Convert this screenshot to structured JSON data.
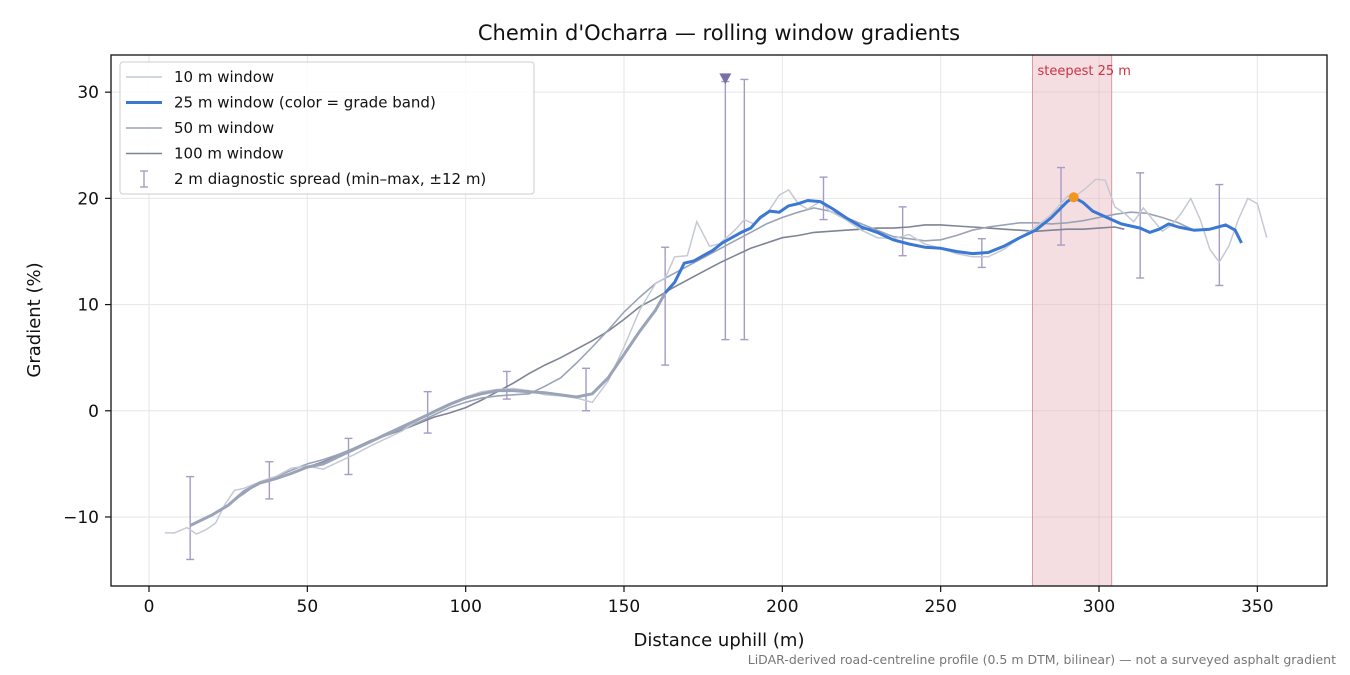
{
  "chart_data": {
    "type": "line",
    "title": "Chemin d'Ocharra — rolling window gradients",
    "xlabel": "Distance uphill (m)",
    "ylabel": "Gradient (%)",
    "xlim": [
      -12,
      372
    ],
    "ylim": [
      -16.5,
      33.5
    ],
    "xticks": [
      0,
      50,
      100,
      150,
      200,
      250,
      300,
      350
    ],
    "yticks": [
      -10,
      0,
      10,
      20,
      30
    ],
    "xtick_labels": [
      "0",
      "50",
      "100",
      "150",
      "200",
      "250",
      "300",
      "350"
    ],
    "ytick_labels": [
      "−10",
      "0",
      "10",
      "20",
      "30"
    ],
    "grid": true,
    "legend_position": "top-left",
    "footnote": "LiDAR-derived road-centreline profile (0.5 m DTM, bilinear) — not a surveyed asphalt gradient",
    "series": [
      {
        "name": "10 m window",
        "color": "#c4c9d4",
        "x": [
          5,
          8,
          12,
          15,
          18,
          21,
          24,
          27,
          30,
          35,
          40,
          45,
          50,
          55,
          60,
          65,
          70,
          75,
          80,
          85,
          90,
          95,
          100,
          105,
          110,
          115,
          120,
          125,
          130,
          135,
          140,
          145,
          150,
          155,
          160,
          163,
          166,
          170,
          173,
          177,
          180,
          182,
          185,
          188,
          191,
          195,
          199,
          202,
          205,
          208,
          212,
          215,
          220,
          225,
          230,
          235,
          240,
          245,
          250,
          255,
          260,
          265,
          270,
          275,
          280,
          285,
          290,
          293,
          296,
          299,
          302,
          305,
          308,
          311,
          314,
          317,
          320,
          323,
          326,
          329,
          332,
          335,
          338,
          341,
          344,
          347,
          350,
          353
        ],
        "y": [
          -11.5,
          -11.5,
          -11.0,
          -11.6,
          -11.2,
          -10.6,
          -8.8,
          -7.5,
          -7.3,
          -6.7,
          -6.2,
          -5.4,
          -5.2,
          -5.5,
          -4.8,
          -4.1,
          -3.3,
          -2.6,
          -1.9,
          -0.9,
          0.0,
          0.7,
          1.3,
          1.8,
          2.0,
          2.1,
          1.9,
          1.5,
          1.4,
          1.2,
          0.8,
          2.8,
          6.0,
          9.5,
          12.0,
          12.5,
          14.5,
          14.6,
          17.8,
          15.5,
          15.7,
          16.2,
          17.0,
          18.0,
          17.6,
          18.5,
          20.3,
          20.8,
          19.5,
          19.0,
          19.7,
          18.8,
          18.0,
          17.0,
          16.3,
          16.2,
          16.6,
          15.7,
          15.3,
          14.8,
          14.5,
          14.5,
          15.2,
          16.3,
          17.3,
          18.5,
          20.2,
          20.3,
          21.0,
          21.8,
          21.7,
          19.2,
          18.6,
          17.8,
          19.1,
          18.0,
          16.9,
          17.5,
          18.6,
          20.0,
          18.0,
          15.2,
          14.0,
          15.5,
          18.0,
          20.0,
          19.5,
          16.3
        ]
      },
      {
        "name": "25 m window (color = grade band)",
        "color": "#3a78d4",
        "gray_color": "#9aa3b8",
        "blue_from": 163,
        "x": [
          13,
          20,
          25,
          30,
          35,
          40,
          45,
          50,
          55,
          60,
          65,
          70,
          75,
          80,
          85,
          90,
          95,
          100,
          105,
          110,
          115,
          120,
          125,
          130,
          135,
          140,
          145,
          150,
          155,
          160,
          163,
          166,
          169,
          172,
          175,
          178,
          181,
          184,
          187,
          190,
          193,
          196,
          199,
          202,
          205,
          208,
          212,
          216,
          220,
          225,
          230,
          235,
          240,
          245,
          250,
          255,
          260,
          265,
          270,
          275,
          280,
          285,
          290,
          292,
          295,
          298,
          301,
          304,
          307,
          310,
          313,
          316,
          319,
          322,
          325,
          330,
          335,
          340,
          343,
          345
        ],
        "y": [
          -10.8,
          -9.8,
          -8.9,
          -7.6,
          -6.8,
          -6.4,
          -5.9,
          -5.3,
          -5.0,
          -4.3,
          -3.6,
          -2.9,
          -2.2,
          -1.5,
          -0.8,
          -0.1,
          0.6,
          1.2,
          1.6,
          1.9,
          1.9,
          1.8,
          1.7,
          1.5,
          1.3,
          1.6,
          3.1,
          5.3,
          7.5,
          9.5,
          11.1,
          12.1,
          13.9,
          14.1,
          14.6,
          15.1,
          15.8,
          16.3,
          16.8,
          17.2,
          18.2,
          18.8,
          18.7,
          19.3,
          19.5,
          19.8,
          19.7,
          19.0,
          18.2,
          17.3,
          16.8,
          16.1,
          15.7,
          15.4,
          15.3,
          15.0,
          14.8,
          14.9,
          15.5,
          16.3,
          17.0,
          18.2,
          19.7,
          20.1,
          19.6,
          18.8,
          18.4,
          18.0,
          17.6,
          17.4,
          17.2,
          16.8,
          17.1,
          17.6,
          17.3,
          17.0,
          17.1,
          17.5,
          17.0,
          15.8
        ]
      },
      {
        "name": "50 m window",
        "color": "#9aa3b5",
        "x": [
          25,
          30,
          35,
          40,
          45,
          50,
          55,
          60,
          65,
          70,
          75,
          80,
          85,
          90,
          95,
          100,
          105,
          110,
          115,
          120,
          125,
          130,
          135,
          140,
          145,
          150,
          155,
          160,
          165,
          170,
          175,
          180,
          185,
          190,
          195,
          200,
          205,
          210,
          215,
          220,
          225,
          230,
          235,
          240,
          245,
          250,
          255,
          260,
          265,
          270,
          275,
          280,
          285,
          290,
          295,
          300,
          305,
          310,
          315,
          320,
          325,
          330
        ],
        "y": [
          -8.8,
          -7.8,
          -6.7,
          -6.2,
          -5.6,
          -5.0,
          -4.6,
          -4.1,
          -3.5,
          -2.9,
          -2.3,
          -1.7,
          -1.1,
          -0.4,
          0.3,
          0.8,
          1.2,
          1.4,
          1.5,
          1.6,
          2.3,
          3.1,
          4.5,
          6.0,
          7.6,
          9.3,
          10.7,
          12.0,
          12.8,
          13.6,
          14.4,
          15.2,
          16.0,
          16.8,
          17.6,
          18.2,
          18.7,
          19.1,
          18.8,
          18.2,
          17.6,
          17.0,
          16.4,
          16.2,
          16.0,
          16.1,
          16.5,
          17.0,
          17.3,
          17.5,
          17.7,
          17.7,
          17.6,
          17.7,
          17.9,
          18.2,
          18.5,
          18.7,
          18.6,
          18.2,
          17.7,
          17.0
        ]
      },
      {
        "name": "100 m window",
        "color": "#7d8496",
        "x": [
          50,
          55,
          60,
          65,
          70,
          75,
          80,
          85,
          90,
          95,
          100,
          105,
          110,
          115,
          120,
          125,
          130,
          135,
          140,
          145,
          150,
          155,
          160,
          165,
          170,
          175,
          180,
          185,
          190,
          195,
          200,
          205,
          210,
          215,
          220,
          225,
          230,
          235,
          240,
          245,
          250,
          255,
          260,
          265,
          270,
          275,
          280,
          285,
          290,
          295,
          300,
          305,
          308
        ],
        "y": [
          -5.3,
          -4.8,
          -4.2,
          -3.5,
          -2.8,
          -2.3,
          -1.8,
          -1.2,
          -0.6,
          -0.2,
          0.3,
          1.0,
          1.8,
          2.6,
          3.5,
          4.3,
          5.0,
          5.8,
          6.6,
          7.5,
          8.6,
          9.8,
          10.6,
          11.5,
          12.3,
          13.1,
          13.9,
          14.6,
          15.3,
          15.8,
          16.3,
          16.5,
          16.8,
          16.9,
          17.0,
          17.1,
          17.2,
          17.2,
          17.3,
          17.5,
          17.5,
          17.4,
          17.3,
          17.2,
          17.1,
          17.0,
          16.9,
          17.0,
          17.1,
          17.1,
          17.2,
          17.3,
          17.1
        ]
      }
    ],
    "error_bars": {
      "name": "2 m diagnostic spread (min–max, ±12 m)",
      "color": "#a69bc4",
      "points": [
        {
          "x": 13,
          "min": -14.0,
          "max": -6.2
        },
        {
          "x": 38,
          "min": -8.3,
          "max": -4.8
        },
        {
          "x": 63,
          "min": -6.0,
          "max": -2.6
        },
        {
          "x": 88,
          "min": -2.1,
          "max": 1.8
        },
        {
          "x": 113,
          "min": 1.1,
          "max": 3.7
        },
        {
          "x": 138,
          "min": 0.0,
          "max": 4.0
        },
        {
          "x": 163,
          "min": 4.3,
          "max": 15.4
        },
        {
          "x": 182,
          "min": 6.7,
          "max": 31.0
        },
        {
          "x": 188,
          "min": 6.7,
          "max": 31.2
        },
        {
          "x": 213,
          "min": 18.0,
          "max": 22.0
        },
        {
          "x": 238,
          "min": 14.6,
          "max": 19.2
        },
        {
          "x": 263,
          "min": 13.5,
          "max": 16.2
        },
        {
          "x": 288,
          "min": 15.6,
          "max": 22.9
        },
        {
          "x": 313,
          "min": 12.5,
          "max": 22.4
        },
        {
          "x": 338,
          "min": 11.8,
          "max": 21.3
        }
      ]
    },
    "marker_triangle": {
      "x": 182,
      "y": 31.2,
      "color": "#7b6fa8"
    },
    "steepest_span": {
      "label": "steepest 25 m",
      "x0": 279,
      "x1": 304,
      "color": "#e8b6bd",
      "label_color": "#cc3344"
    },
    "peak_marker": {
      "x": 292,
      "y": 20.1,
      "color": "#f2961e"
    }
  }
}
